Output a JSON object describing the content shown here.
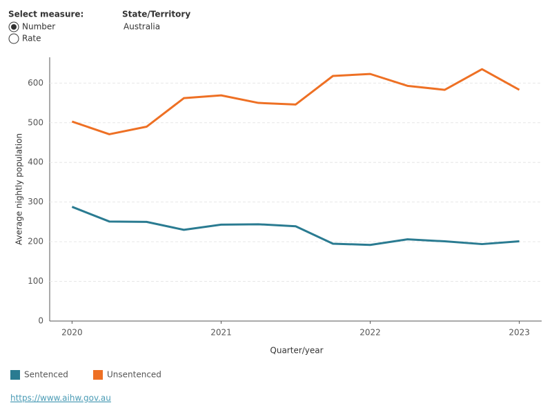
{
  "controls": {
    "measure_label": "Select measure:",
    "options": [
      "Number",
      "Rate"
    ],
    "selected": "Number",
    "state_label": "State/Territory",
    "state_value": "Australia"
  },
  "source_link": "https://www.aihw.gov.au",
  "chart_data": {
    "type": "line",
    "x_label": "Quarter/year",
    "y_label": "Average nightly population",
    "x": [
      2020,
      2020.25,
      2020.5,
      2020.75,
      2021,
      2021.25,
      2021.5,
      2021.75,
      2022,
      2022.25,
      2022.5,
      2022.75,
      2023
    ],
    "xlim": [
      2019.85,
      2023.15
    ],
    "xticks": [
      2020,
      2021,
      2022,
      2023
    ],
    "ylim": [
      0,
      665
    ],
    "yticks": [
      0,
      100,
      200,
      300,
      400,
      500,
      600
    ],
    "grid": true,
    "series": [
      {
        "name": "Sentenced",
        "color": "#2a7b91",
        "values": [
          288,
          251,
          250,
          230,
          243,
          244,
          239,
          195,
          192,
          206,
          201,
          194,
          201
        ]
      },
      {
        "name": "Unsentenced",
        "color": "#ee7024",
        "values": [
          503,
          471,
          490,
          562,
          569,
          550,
          546,
          618,
          623,
          593,
          583,
          635,
          583
        ]
      }
    ]
  }
}
